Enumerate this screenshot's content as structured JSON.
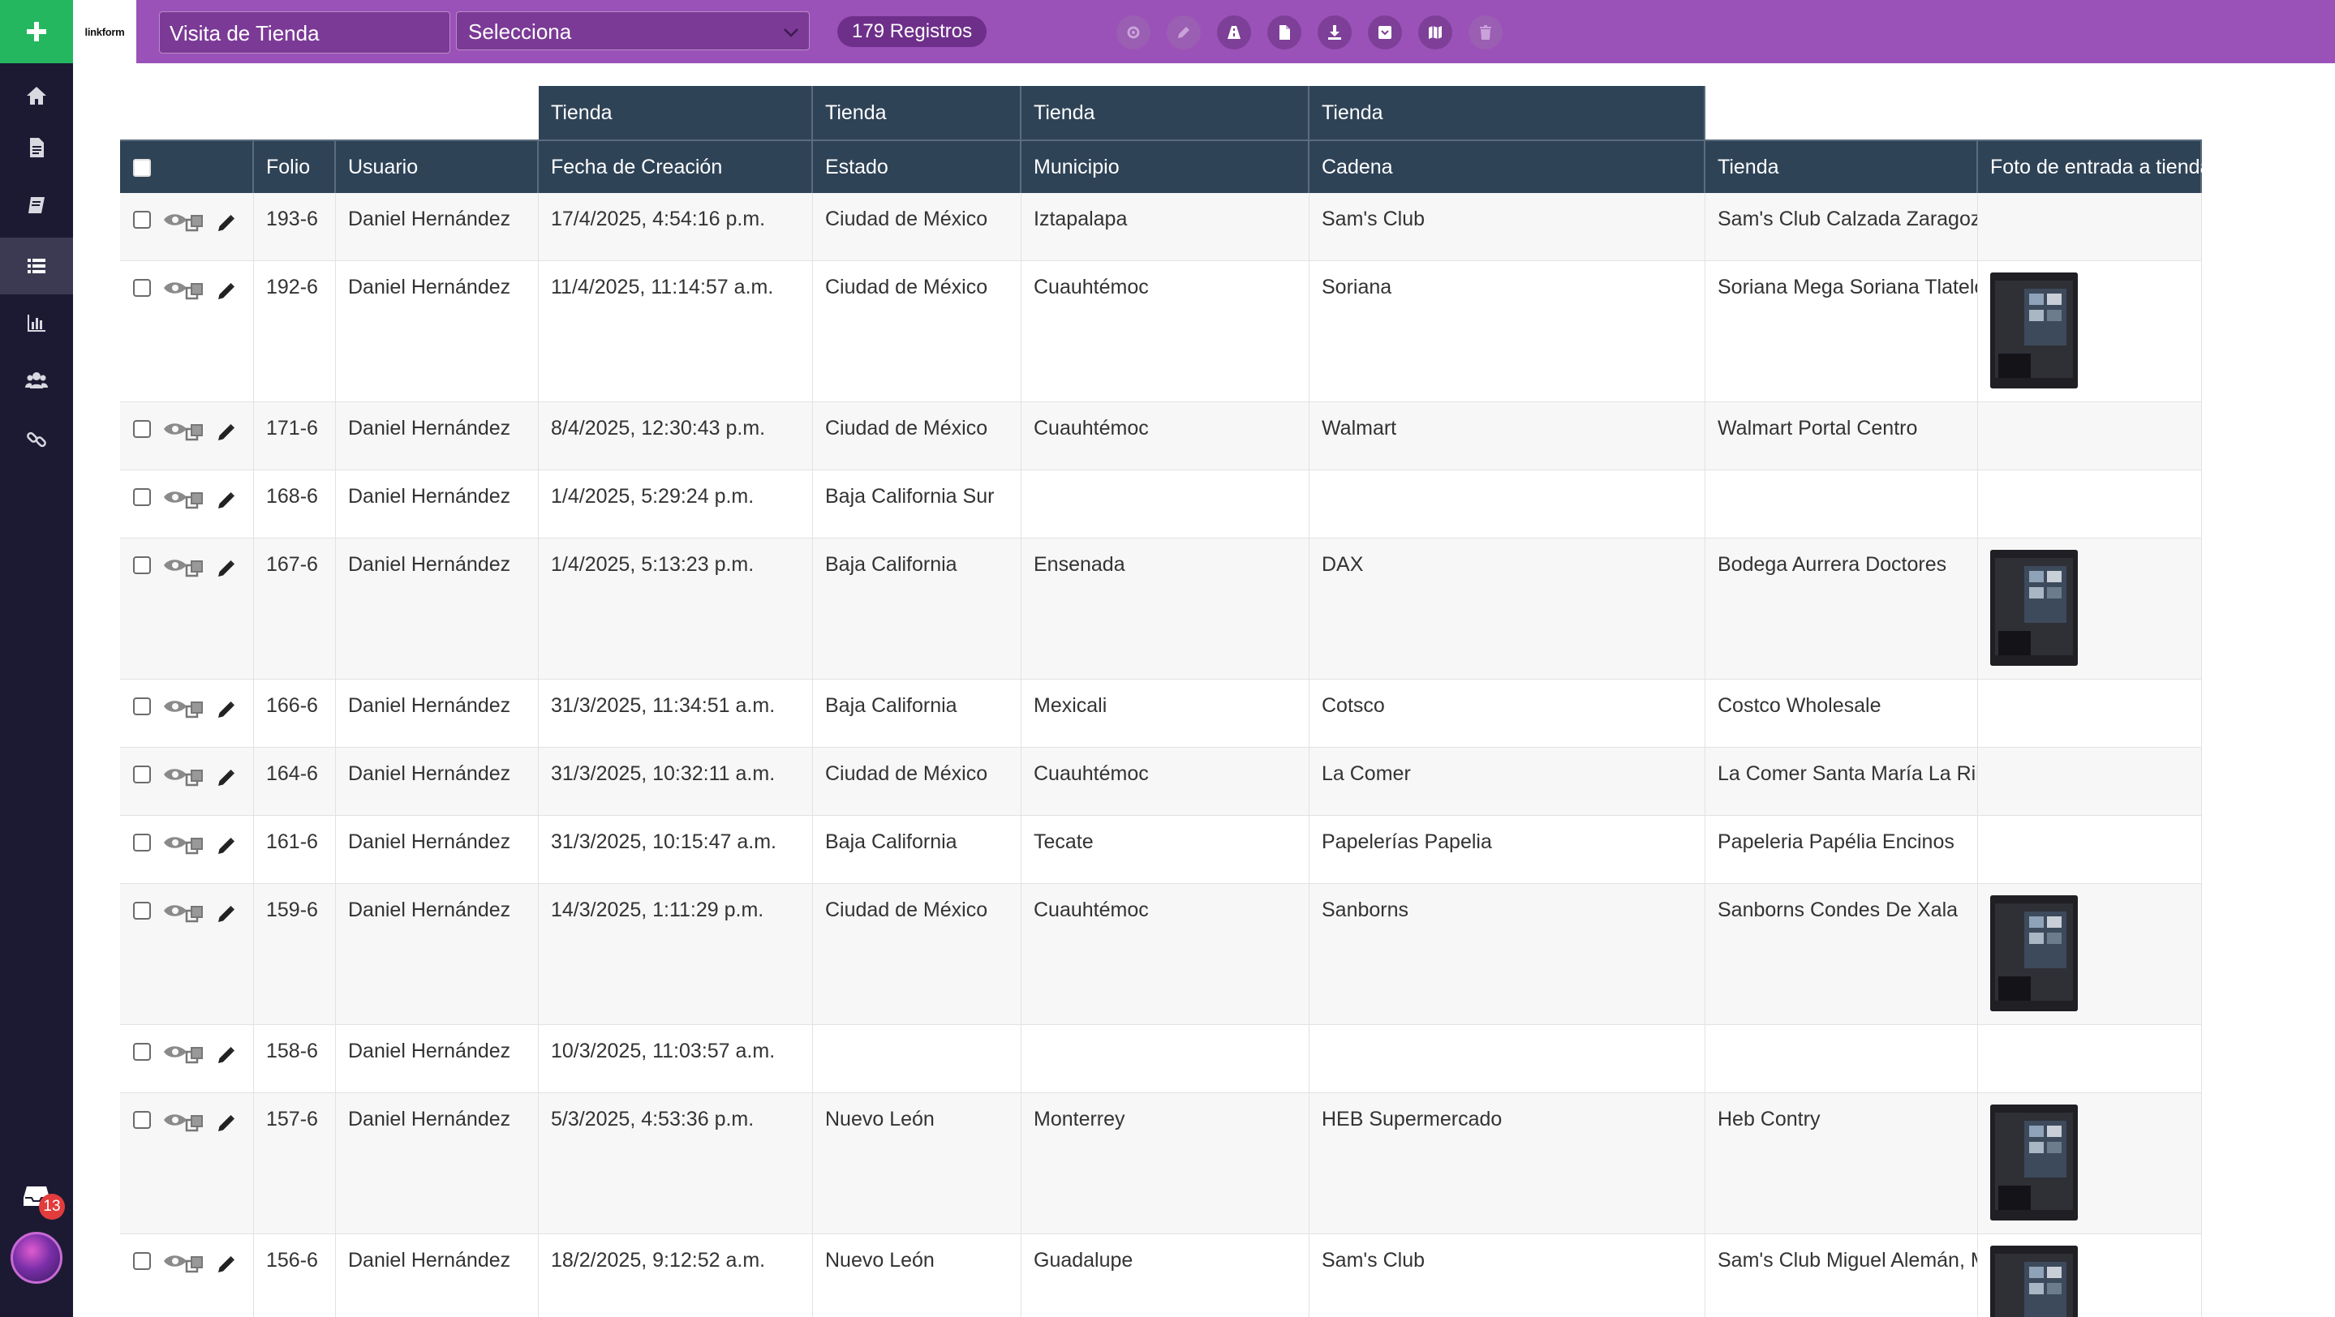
{
  "app": {
    "logo_text": "linkform",
    "colors": {
      "topbar": "#9b52b8",
      "sidebar": "#1c1a33",
      "add_button": "#25b760",
      "table_header": "#2f4357"
    }
  },
  "sidebar": {
    "items": [
      {
        "icon": "home-icon"
      },
      {
        "icon": "document-icon"
      },
      {
        "icon": "book-icon"
      },
      {
        "icon": "list-icon",
        "active": true
      },
      {
        "icon": "bar-chart-icon"
      },
      {
        "icon": "users-icon"
      },
      {
        "icon": "link-icon"
      }
    ],
    "inbox_count": "13"
  },
  "topbar": {
    "form_name": "Visita de Tienda",
    "view_placeholder": "Selecciona",
    "records_label": "179 Registros",
    "tools": [
      "gear-icon",
      "pencil-icon",
      "road-icon",
      "file-icon",
      "download-icon",
      "archive-icon",
      "map-icon",
      "trash-icon"
    ]
  },
  "table": {
    "group_headers": [
      {
        "label": "Tienda"
      },
      {
        "label": "Tienda"
      },
      {
        "label": "Tienda"
      },
      {
        "label": "Tienda"
      }
    ],
    "columns": [
      "Folio",
      "Usuario",
      "Fecha de Creación",
      "Estado",
      "Municipio",
      "Cadena",
      "Tienda",
      "Foto de entrada a tienda"
    ],
    "rows": [
      {
        "folio": "193-6",
        "usuario": "Daniel Hernández",
        "fecha": "17/4/2025, 4:54:16 p.m.",
        "estado": "Ciudad de México",
        "municipio": "Iztapalapa",
        "cadena": "Sam's Club",
        "tienda": "Sam's Club Calzada Zaragoza, CDMX",
        "photo": false
      },
      {
        "folio": "192-6",
        "usuario": "Daniel Hernández",
        "fecha": "11/4/2025, 11:14:57 a.m.",
        "estado": "Ciudad de México",
        "municipio": "Cuauhtémoc",
        "cadena": "Soriana",
        "tienda": "Soriana Mega Soriana Tlatelolco",
        "photo": true
      },
      {
        "folio": "171-6",
        "usuario": "Daniel Hernández",
        "fecha": "8/4/2025, 12:30:43 p.m.",
        "estado": "Ciudad de México",
        "municipio": "Cuauhtémoc",
        "cadena": "Walmart",
        "tienda": "Walmart Portal Centro",
        "photo": false
      },
      {
        "folio": "168-6",
        "usuario": "Daniel Hernández",
        "fecha": "1/4/2025, 5:29:24 p.m.",
        "estado": "Baja California Sur",
        "municipio": "",
        "cadena": "",
        "tienda": "",
        "photo": false
      },
      {
        "folio": "167-6",
        "usuario": "Daniel Hernández",
        "fecha": "1/4/2025, 5:13:23 p.m.",
        "estado": "Baja California",
        "municipio": "Ensenada",
        "cadena": "DAX",
        "tienda": "Bodega Aurrera Doctores",
        "photo": true
      },
      {
        "folio": "166-6",
        "usuario": "Daniel Hernández",
        "fecha": "31/3/2025, 11:34:51 a.m.",
        "estado": "Baja California",
        "municipio": "Mexicali",
        "cadena": "Cotsco",
        "tienda": "Costco Wholesale",
        "photo": false
      },
      {
        "folio": "164-6",
        "usuario": "Daniel Hernández",
        "fecha": "31/3/2025, 10:32:11 a.m.",
        "estado": "Ciudad de México",
        "municipio": "Cuauhtémoc",
        "cadena": "La Comer",
        "tienda": "La Comer Santa María La Ribera",
        "photo": false
      },
      {
        "folio": "161-6",
        "usuario": "Daniel Hernández",
        "fecha": "31/3/2025, 10:15:47 a.m.",
        "estado": "Baja California",
        "municipio": "Tecate",
        "cadena": "Papelerías Papelia",
        "tienda": "Papeleria Papélia Encinos",
        "photo": false
      },
      {
        "folio": "159-6",
        "usuario": "Daniel Hernández",
        "fecha": "14/3/2025, 1:11:29 p.m.",
        "estado": "Ciudad de México",
        "municipio": "Cuauhtémoc",
        "cadena": "Sanborns",
        "tienda": "Sanborns Condes De Xala",
        "photo": true
      },
      {
        "folio": "158-6",
        "usuario": "Daniel Hernández",
        "fecha": "10/3/2025, 11:03:57 a.m.",
        "estado": "",
        "municipio": "",
        "cadena": "",
        "tienda": "",
        "photo": false
      },
      {
        "folio": "157-6",
        "usuario": "Daniel Hernández",
        "fecha": "5/3/2025, 4:53:36 p.m.",
        "estado": "Nuevo León",
        "municipio": "Monterrey",
        "cadena": "HEB Supermercado",
        "tienda": "Heb Contry",
        "photo": true
      },
      {
        "folio": "156-6",
        "usuario": "Daniel Hernández",
        "fecha": "18/2/2025, 9:12:52 a.m.",
        "estado": "Nuevo León",
        "municipio": "Guadalupe",
        "cadena": "Sam's Club",
        "tienda": "Sam's Club Miguel Alemán, Mty.",
        "photo": true
      }
    ]
  }
}
